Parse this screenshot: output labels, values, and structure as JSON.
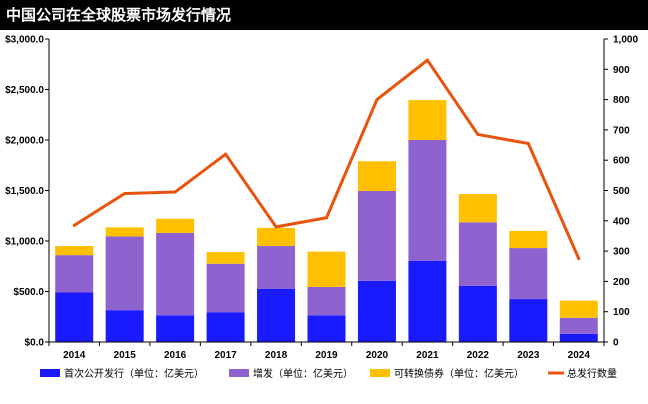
{
  "title": "中国公司在全球股票市场发行情况",
  "chart_data": {
    "type": "bar+line",
    "title": "中国公司在全球股票市场发行情况",
    "categories": [
      "2014",
      "2015",
      "2016",
      "2017",
      "2018",
      "2019",
      "2020",
      "2021",
      "2022",
      "2023",
      "2024"
    ],
    "series": [
      {
        "name": "首次公开发行（单位：亿美元）",
        "type": "stacked-bar",
        "axis": "left",
        "color": "#1a1aff",
        "values": [
          490,
          315,
          265,
          295,
          525,
          265,
          605,
          805,
          555,
          425,
          80
        ]
      },
      {
        "name": "增发（单位：亿美元）",
        "type": "stacked-bar",
        "axis": "left",
        "color": "#8e63cf",
        "values": [
          370,
          730,
          815,
          480,
          425,
          280,
          890,
          1195,
          630,
          505,
          160
        ]
      },
      {
        "name": "可转换债券（单位：亿美元）",
        "type": "stacked-bar",
        "axis": "left",
        "color": "#ffc000",
        "values": [
          90,
          90,
          140,
          115,
          180,
          350,
          295,
          395,
          280,
          170,
          170
        ]
      },
      {
        "name": "总发行数量",
        "type": "line",
        "axis": "right",
        "color": "#e8530e",
        "values": [
          385,
          490,
          495,
          620,
          380,
          410,
          800,
          930,
          685,
          655,
          275
        ]
      }
    ],
    "y_left": {
      "min": 0,
      "max": 3000,
      "step": 500,
      "tick_labels": [
        "$0.0",
        "$500.0",
        "$1,000.0",
        "$1,500.0",
        "$2,000.0",
        "$2,500.0",
        "$3,000.0"
      ]
    },
    "y_right": {
      "min": 0,
      "max": 1000,
      "step": 100,
      "tick_labels": [
        "0",
        "100",
        "200",
        "300",
        "400",
        "500",
        "600",
        "700",
        "800",
        "900",
        "1,000"
      ]
    },
    "legend_position": "bottom",
    "grid": false
  }
}
